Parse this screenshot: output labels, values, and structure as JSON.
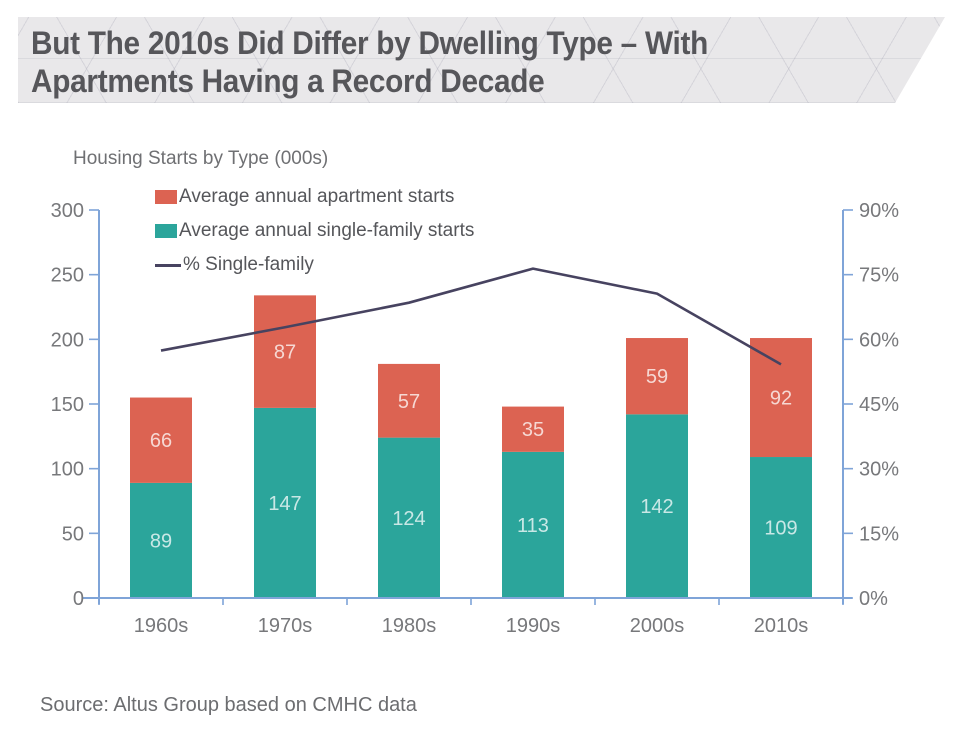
{
  "header": {
    "title_line1": "But The 2010s Did Differ by Dwelling Type – With",
    "title_line2": "Apartments Having a Record Decade"
  },
  "chart": {
    "title": "Housing Starts by Type (000s)"
  },
  "legend": [
    {
      "label": "Average annual apartment starts",
      "color": "#dc6352",
      "swatch": "square"
    },
    {
      "label": "Average annual single-family starts",
      "color": "#2ba59b",
      "swatch": "square"
    },
    {
      "label": "% Single-family",
      "color": "#474360",
      "swatch": "line"
    }
  ],
  "chart_data": {
    "type": "bar",
    "subtype": "stacked-column-with-line",
    "title": "Housing Starts by Type (000s)",
    "categories": [
      "1960s",
      "1970s",
      "1980s",
      "1990s",
      "2000s",
      "2010s"
    ],
    "series": [
      {
        "name": "Average annual single-family starts",
        "color": "#2ba59b",
        "values": [
          89,
          147,
          124,
          113,
          142,
          109
        ]
      },
      {
        "name": "Average annual apartment starts",
        "color": "#dc6352",
        "values": [
          66,
          87,
          57,
          35,
          59,
          92
        ]
      }
    ],
    "line_series": {
      "name": "% Single-family",
      "color": "#474360",
      "axis": "right",
      "values_pct": [
        57.4,
        62.8,
        68.5,
        76.4,
        70.6,
        54.2
      ]
    },
    "left_axis": {
      "min": 0,
      "max": 300,
      "ticks": [
        0,
        50,
        100,
        150,
        200,
        250,
        300
      ]
    },
    "right_axis": {
      "min": 0,
      "max": 90,
      "ticks_pct": [
        0,
        15,
        30,
        45,
        60,
        75,
        90
      ],
      "tick_labels": [
        "0%",
        "15%",
        "30%",
        "45%",
        "60%",
        "75%",
        "90%"
      ]
    },
    "grid": "off",
    "legend_position": "top-left",
    "style": {
      "axis_color": "#7fa4d8",
      "tick_label_color": "#77787b",
      "bar_label_color": "rgba(255,255,255,0.75)"
    }
  },
  "source": "Source: Altus Group based on CMHC data"
}
